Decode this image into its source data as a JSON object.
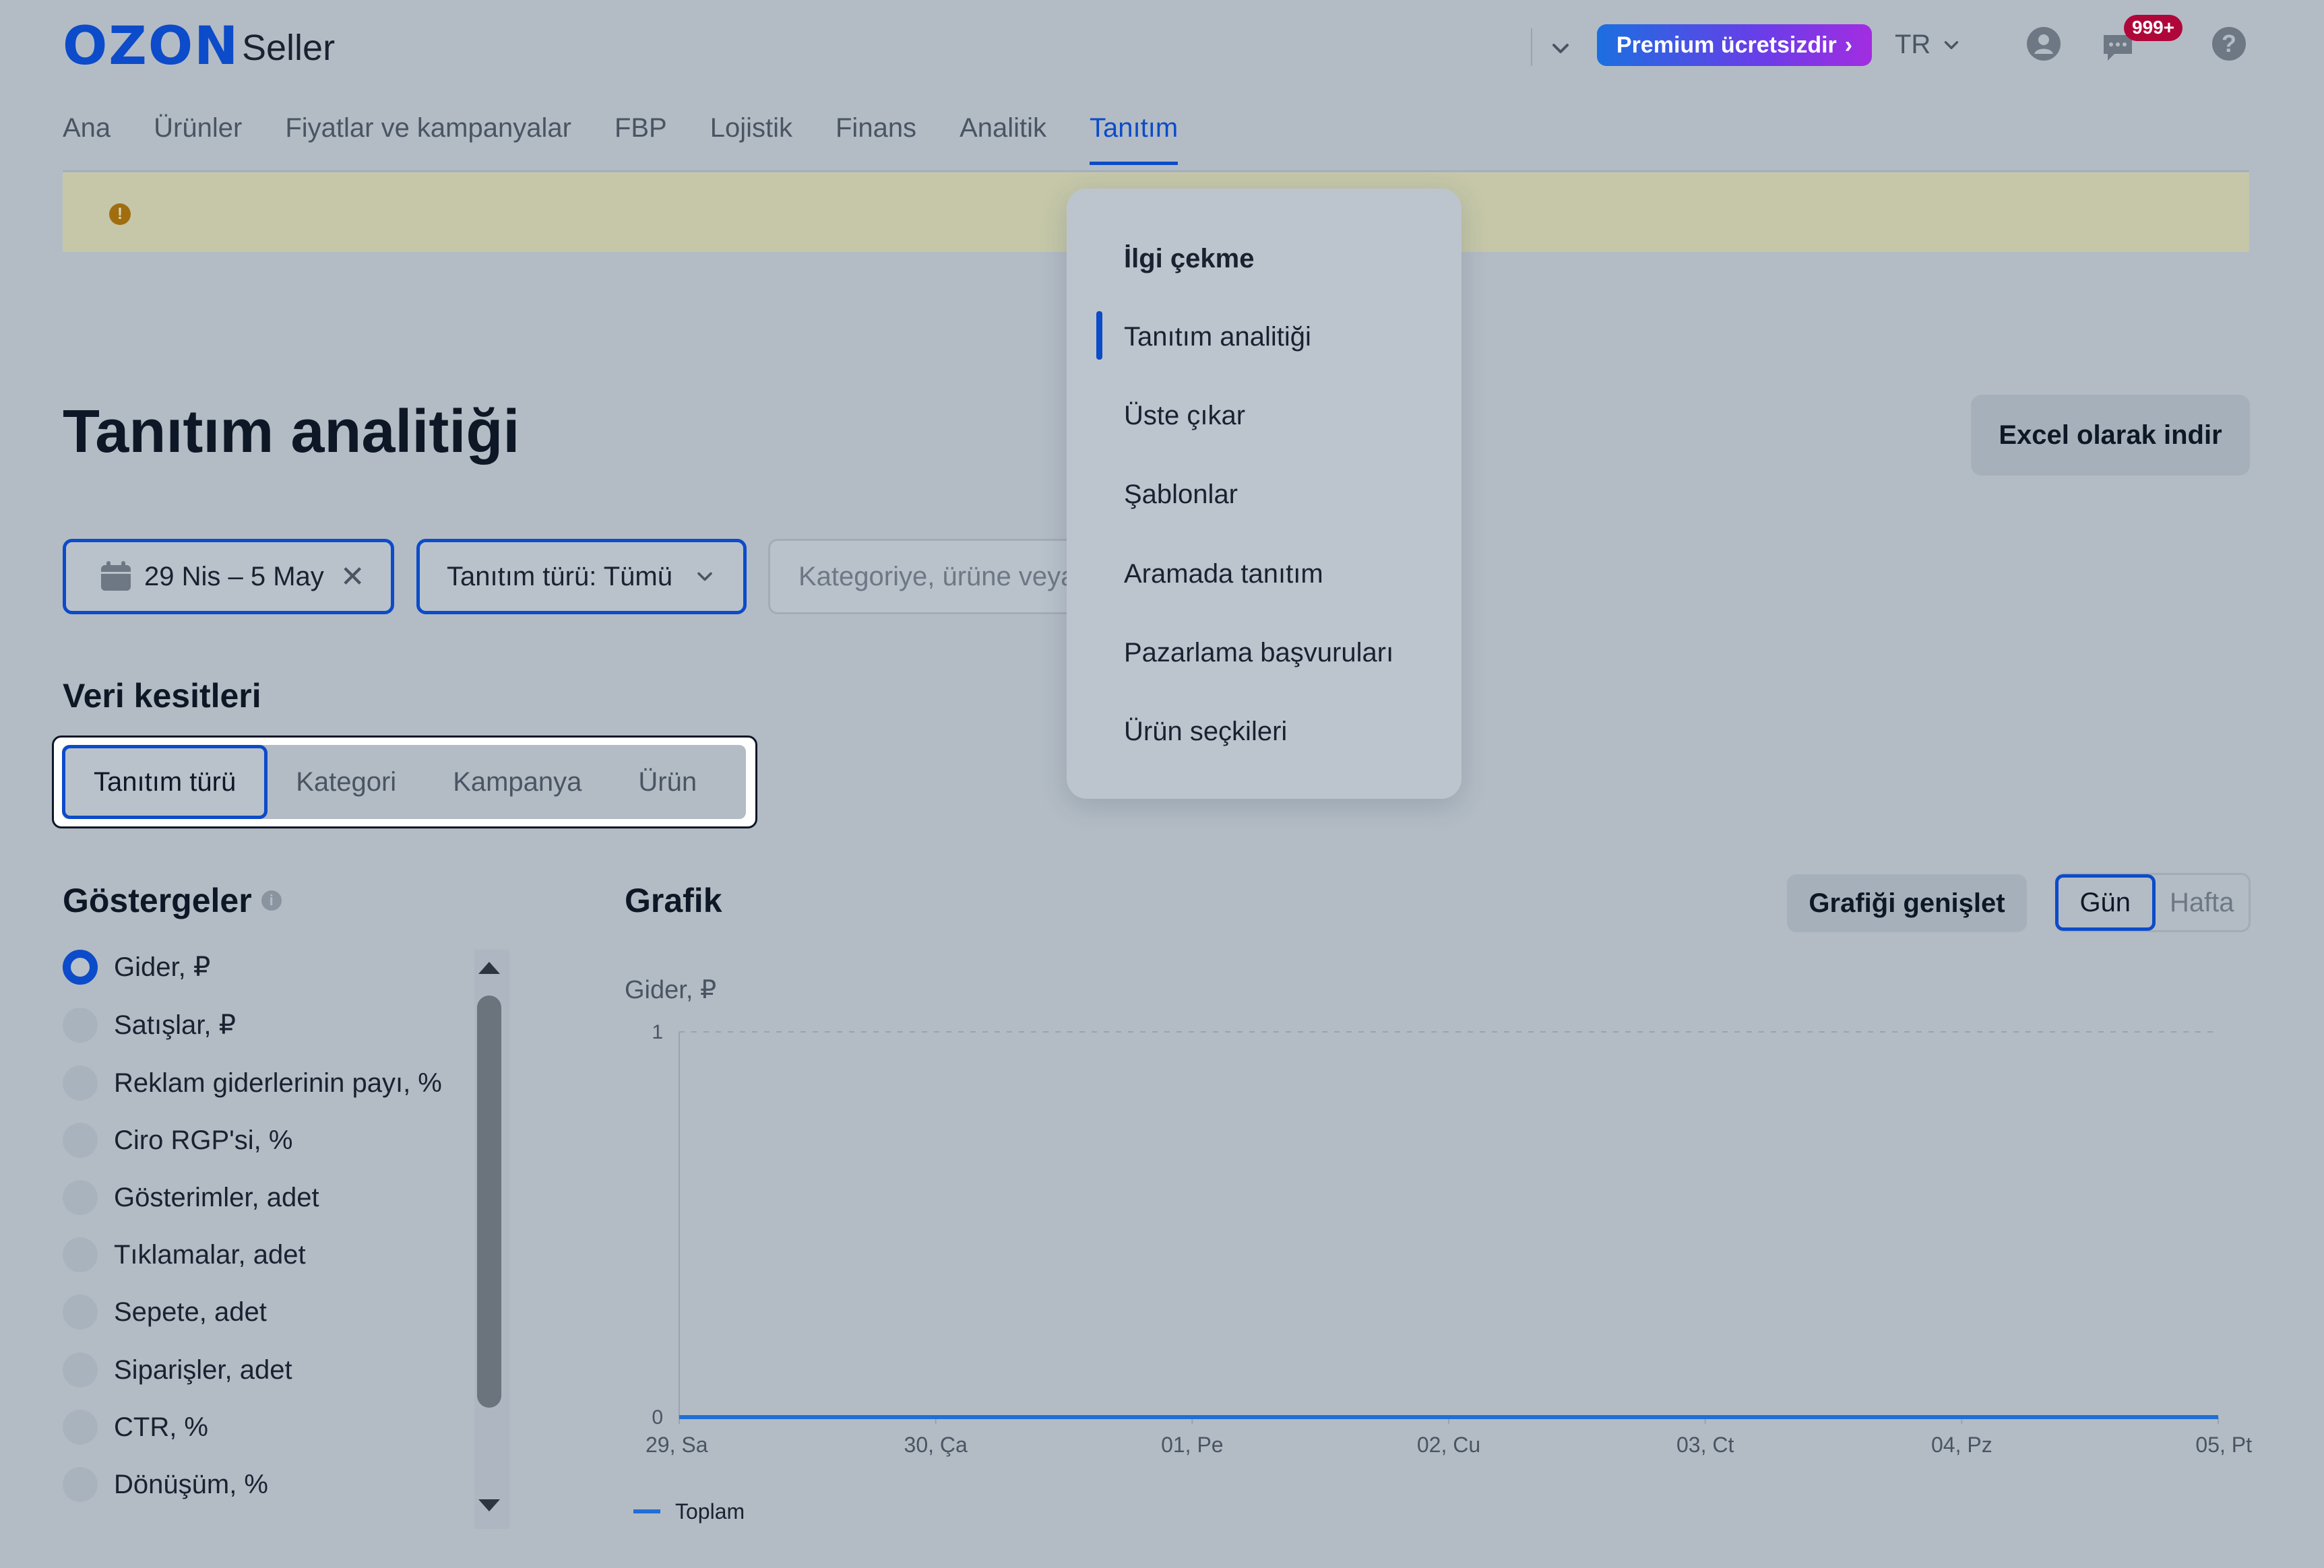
{
  "header": {
    "logo_ozon": "OZON",
    "logo_seller": "Seller",
    "premium_label": "Premium ücretsizdir",
    "premium_arrow": "›",
    "language": "TR",
    "notifications_badge": "999+",
    "help_glyph": "?"
  },
  "nav": {
    "items": [
      {
        "label": "Ana"
      },
      {
        "label": "Ürünler"
      },
      {
        "label": "Fiyatlar ve kampanyalar"
      },
      {
        "label": "FBP"
      },
      {
        "label": "Lojistik"
      },
      {
        "label": "Finans"
      },
      {
        "label": "Analitik"
      },
      {
        "label": "Tanıtım",
        "active": true
      }
    ]
  },
  "notice": {
    "icon_glyph": "!"
  },
  "page": {
    "title": "Tanıtım analitiği",
    "excel_button": "Excel olarak indir"
  },
  "filters": {
    "date_range": "29 Nis – 5 May",
    "date_clear_glyph": "✕",
    "promo_type": "Tanıtım türü: Tümü",
    "search_placeholder": "Kategoriye, ürüne veya"
  },
  "slices": {
    "title": "Veri kesitleri",
    "tabs": [
      "Tanıtım türü",
      "Kategori",
      "Kampanya",
      "Ürün"
    ],
    "active_index": 0
  },
  "metrics": {
    "title": "Göstergeler",
    "info_glyph": "i",
    "items": [
      {
        "label": "Gider, ₽",
        "selected": true
      },
      {
        "label": "Satışlar, ₽"
      },
      {
        "label": "Reklam giderlerinin payı, %"
      },
      {
        "label": "Ciro RGP'si, %"
      },
      {
        "label": "Gösterimler, adet"
      },
      {
        "label": "Tıklamalar, adet"
      },
      {
        "label": "Sepete, adet"
      },
      {
        "label": "Siparişler, adet"
      },
      {
        "label": "CTR, %"
      },
      {
        "label": "Dönüşüm, %"
      }
    ]
  },
  "chart_section": {
    "title": "Grafik",
    "expand_button": "Grafiği genişlet",
    "period_options": [
      "Gün",
      "Hafta"
    ],
    "period_active": "Gün"
  },
  "chart_data": {
    "type": "line",
    "ylabel": "Gider, ₽",
    "ylim": [
      0,
      1
    ],
    "y_ticks": [
      "0",
      "1"
    ],
    "categories": [
      "29, Sa",
      "30, Ça",
      "01, Pe",
      "02, Cu",
      "03, Ct",
      "04, Pz",
      "05, Pt"
    ],
    "series": [
      {
        "name": "Toplam",
        "values": [
          0,
          0,
          0,
          0,
          0,
          0,
          0
        ],
        "color": "#1f6fd6"
      }
    ],
    "grid": "top dashed line",
    "legend": "bottom-left"
  },
  "dropdown_menu": {
    "items": [
      {
        "label": "İlgi çekme",
        "heading": true
      },
      {
        "label": "Tanıtım analitiği",
        "active": true
      },
      {
        "label": "Üste çıkar"
      },
      {
        "label": "Şablonlar"
      },
      {
        "label": "Aramada tanıtım"
      },
      {
        "label": "Pazarlama başvuruları"
      },
      {
        "label": "Ürün seçkileri"
      }
    ]
  },
  "colors": {
    "accent": "#0c4bc9",
    "background_overlay": "#b3bcc5",
    "notice_bg": "#c5c7a8",
    "badge": "#b0073b"
  }
}
